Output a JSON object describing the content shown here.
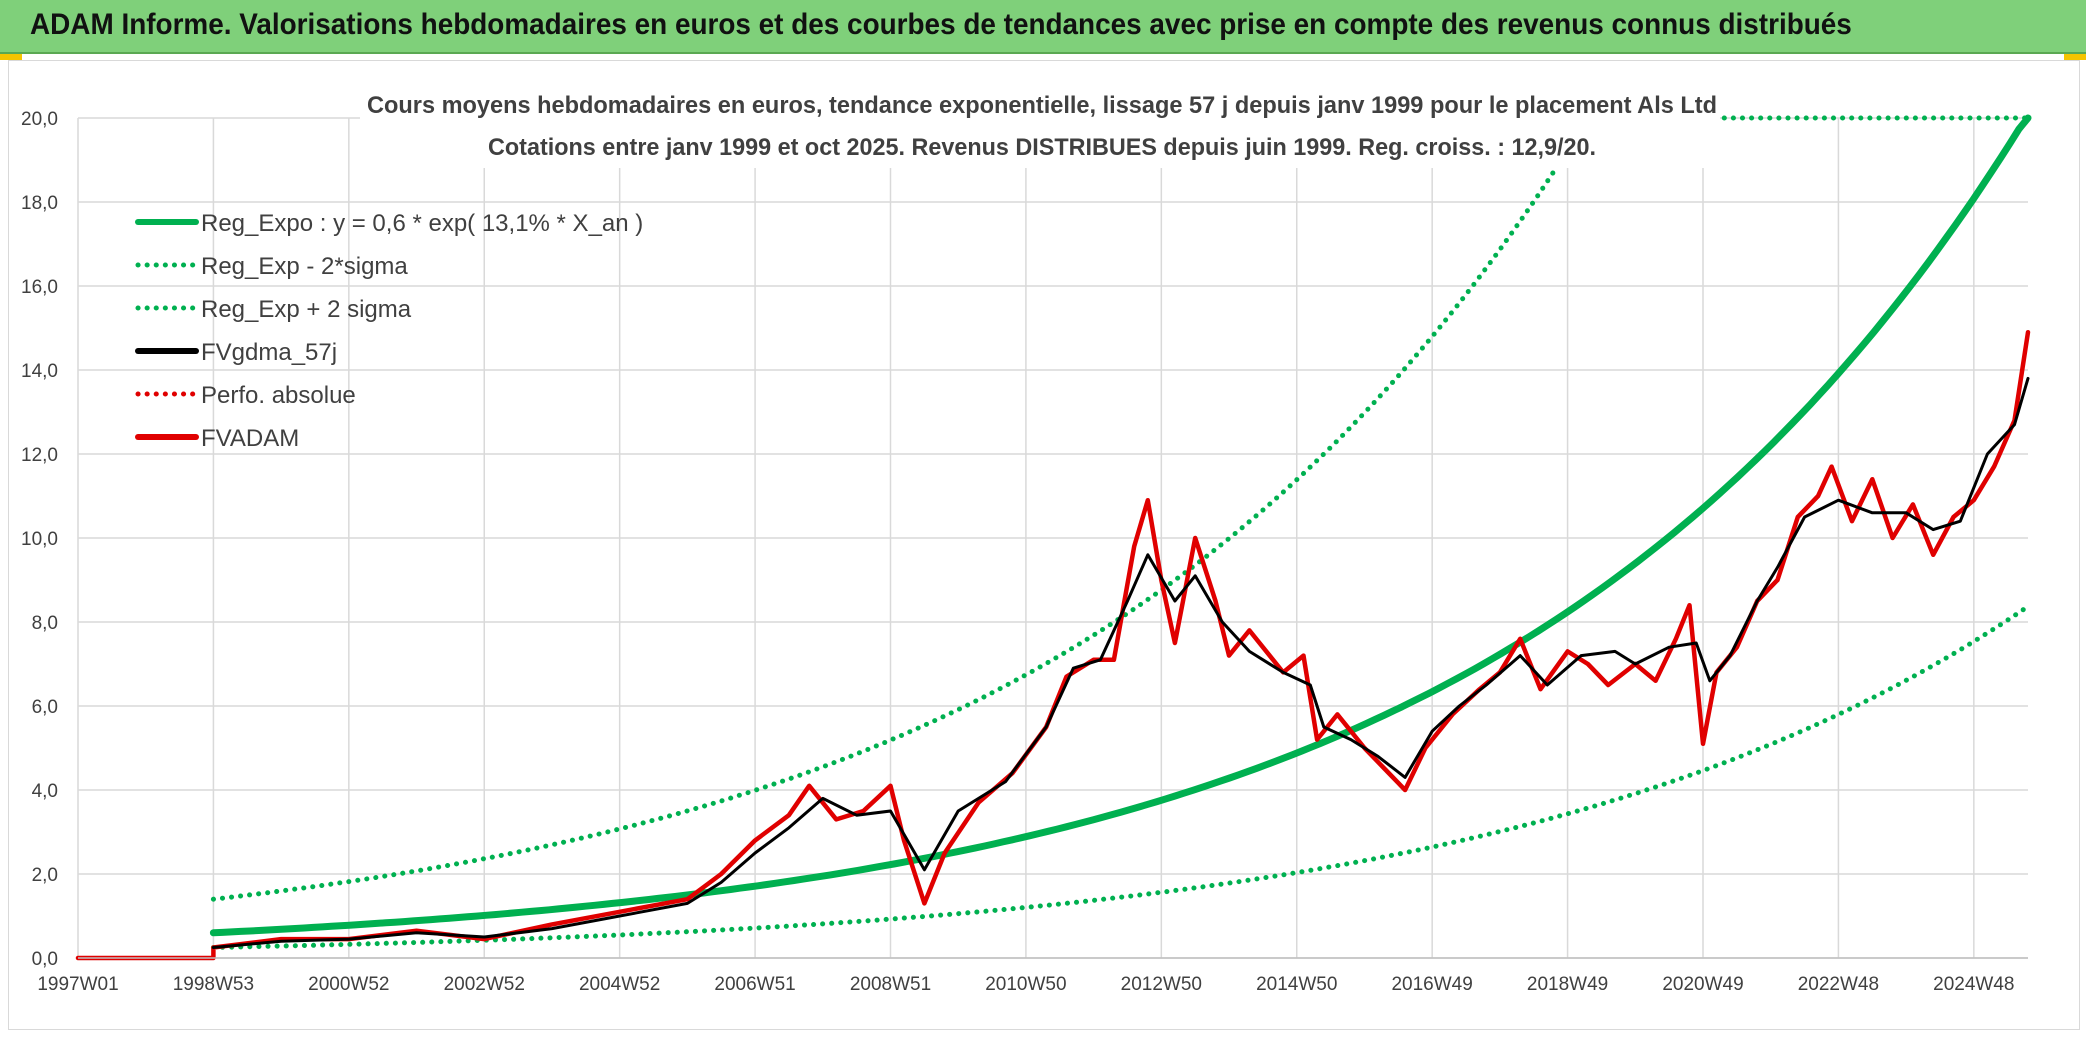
{
  "header": {
    "title": "ADAM Informe. Valorisations hebdomadaires en euros et des courbes de tendances avec prise en compte des revenus connus distribués"
  },
  "chart_data": {
    "type": "line",
    "title_line1": "Cours moyens hebdomadaires en euros, tendance exponentielle, lissage 57 j depuis janv 1999 pour le placement Als Ltd",
    "title_line2": "Cotations entre janv 1999 et oct 2025. Revenus DISTRIBUES depuis juin 1999. Reg. croiss. : 12,9/20.",
    "xlabel": "",
    "ylabel": "",
    "ylim": [
      0,
      20
    ],
    "xlim": [
      1997.0,
      2025.8
    ],
    "grid": true,
    "y_ticks": [
      "0,0",
      "2,0",
      "4,0",
      "6,0",
      "8,0",
      "10,0",
      "12,0",
      "14,0",
      "16,0",
      "18,0",
      "20,0"
    ],
    "x_ticks": [
      {
        "label": "1997W01",
        "x": 1997.0
      },
      {
        "label": "1998W53",
        "x": 1999.0
      },
      {
        "label": "2000W52",
        "x": 2001.0
      },
      {
        "label": "2002W52",
        "x": 2003.0
      },
      {
        "label": "2004W52",
        "x": 2005.0
      },
      {
        "label": "2006W51",
        "x": 2007.0
      },
      {
        "label": "2008W51",
        "x": 2009.0
      },
      {
        "label": "2010W50",
        "x": 2011.0
      },
      {
        "label": "2012W50",
        "x": 2013.0
      },
      {
        "label": "2014W50",
        "x": 2015.0
      },
      {
        "label": "2016W49",
        "x": 2017.0
      },
      {
        "label": "2018W49",
        "x": 2019.0
      },
      {
        "label": "2020W49",
        "x": 2021.0
      },
      {
        "label": "2022W48",
        "x": 2023.0
      },
      {
        "label": "2024W48",
        "x": 2025.0
      }
    ],
    "legend_position": "top-left",
    "series": [
      {
        "name": "Reg_Expo : y = 0,6 * exp( 13,1% *  X_an )",
        "color": "#00b050",
        "style": "solid",
        "type": "exp",
        "a": 0.6,
        "r": 0.131,
        "x0": 1999.0,
        "x1": 2025.8
      },
      {
        "name": "Reg_Exp - 2*sigma",
        "color": "#00b050",
        "style": "dotted",
        "type": "exp",
        "a": 0.25,
        "r": 0.131,
        "x0": 1999.0,
        "x1": 2025.8
      },
      {
        "name": "Reg_Exp + 2 sigma",
        "color": "#00b050",
        "style": "dotted",
        "type": "exp",
        "a": 1.4,
        "r": 0.131,
        "x0": 1999.0,
        "x1": 2025.8
      },
      {
        "name": "FVgdma_57j",
        "color": "#000000",
        "style": "solid",
        "type": "points",
        "points": [
          [
            1999.0,
            0.25
          ],
          [
            2000.0,
            0.4
          ],
          [
            2001.0,
            0.45
          ],
          [
            2002.0,
            0.6
          ],
          [
            2003.0,
            0.5
          ],
          [
            2004.0,
            0.7
          ],
          [
            2005.0,
            1.0
          ],
          [
            2006.0,
            1.3
          ],
          [
            2006.5,
            1.8
          ],
          [
            2007.0,
            2.5
          ],
          [
            2007.5,
            3.1
          ],
          [
            2008.0,
            3.8
          ],
          [
            2008.5,
            3.4
          ],
          [
            2009.0,
            3.5
          ],
          [
            2009.5,
            2.1
          ],
          [
            2010.0,
            3.5
          ],
          [
            2010.7,
            4.2
          ],
          [
            2011.3,
            5.5
          ],
          [
            2011.7,
            6.9
          ],
          [
            2012.1,
            7.1
          ],
          [
            2012.5,
            8.5
          ],
          [
            2012.8,
            9.6
          ],
          [
            2013.2,
            8.5
          ],
          [
            2013.5,
            9.1
          ],
          [
            2013.9,
            8.0
          ],
          [
            2014.3,
            7.3
          ],
          [
            2014.8,
            6.8
          ],
          [
            2015.2,
            6.5
          ],
          [
            2015.4,
            5.5
          ],
          [
            2015.8,
            5.2
          ],
          [
            2016.2,
            4.8
          ],
          [
            2016.6,
            4.3
          ],
          [
            2017.0,
            5.4
          ],
          [
            2017.4,
            6.0
          ],
          [
            2017.8,
            6.5
          ],
          [
            2018.3,
            7.2
          ],
          [
            2018.7,
            6.5
          ],
          [
            2019.2,
            7.2
          ],
          [
            2019.7,
            7.3
          ],
          [
            2020.0,
            7.0
          ],
          [
            2020.5,
            7.4
          ],
          [
            2020.9,
            7.5
          ],
          [
            2021.1,
            6.6
          ],
          [
            2021.4,
            7.2
          ],
          [
            2021.8,
            8.5
          ],
          [
            2022.1,
            9.3
          ],
          [
            2022.5,
            10.5
          ],
          [
            2023.0,
            10.9
          ],
          [
            2023.5,
            10.6
          ],
          [
            2024.0,
            10.6
          ],
          [
            2024.4,
            10.2
          ],
          [
            2024.8,
            10.4
          ],
          [
            2025.2,
            12.0
          ],
          [
            2025.6,
            12.7
          ],
          [
            2025.8,
            13.8
          ]
        ]
      },
      {
        "name": "Perfo. absolue",
        "color": "#e00000",
        "style": "dotted",
        "type": "none"
      },
      {
        "name": "FVADAM",
        "color": "#e00000",
        "style": "solid",
        "type": "points",
        "points": [
          [
            1997.0,
            0.0
          ],
          [
            1999.0,
            0.0
          ],
          [
            1999.0,
            0.25
          ],
          [
            2000.0,
            0.45
          ],
          [
            2001.0,
            0.45
          ],
          [
            2002.0,
            0.65
          ],
          [
            2003.0,
            0.45
          ],
          [
            2004.0,
            0.8
          ],
          [
            2005.0,
            1.1
          ],
          [
            2006.0,
            1.4
          ],
          [
            2006.5,
            2.0
          ],
          [
            2007.0,
            2.8
          ],
          [
            2007.5,
            3.4
          ],
          [
            2007.8,
            4.1
          ],
          [
            2008.2,
            3.3
          ],
          [
            2008.6,
            3.5
          ],
          [
            2009.0,
            4.1
          ],
          [
            2009.2,
            2.8
          ],
          [
            2009.5,
            1.3
          ],
          [
            2009.8,
            2.5
          ],
          [
            2010.3,
            3.7
          ],
          [
            2010.8,
            4.4
          ],
          [
            2011.3,
            5.5
          ],
          [
            2011.6,
            6.7
          ],
          [
            2012.0,
            7.1
          ],
          [
            2012.3,
            7.1
          ],
          [
            2012.6,
            9.8
          ],
          [
            2012.8,
            10.9
          ],
          [
            2013.0,
            9.0
          ],
          [
            2013.2,
            7.5
          ],
          [
            2013.5,
            10.0
          ],
          [
            2013.8,
            8.5
          ],
          [
            2014.0,
            7.2
          ],
          [
            2014.3,
            7.8
          ],
          [
            2014.8,
            6.8
          ],
          [
            2015.1,
            7.2
          ],
          [
            2015.3,
            5.2
          ],
          [
            2015.6,
            5.8
          ],
          [
            2016.0,
            5.0
          ],
          [
            2016.3,
            4.5
          ],
          [
            2016.6,
            4.0
          ],
          [
            2016.9,
            5.0
          ],
          [
            2017.3,
            5.8
          ],
          [
            2017.7,
            6.4
          ],
          [
            2018.0,
            6.8
          ],
          [
            2018.3,
            7.6
          ],
          [
            2018.6,
            6.4
          ],
          [
            2019.0,
            7.3
          ],
          [
            2019.3,
            7.0
          ],
          [
            2019.6,
            6.5
          ],
          [
            2020.0,
            7.0
          ],
          [
            2020.3,
            6.6
          ],
          [
            2020.6,
            7.6
          ],
          [
            2020.8,
            8.4
          ],
          [
            2021.0,
            5.1
          ],
          [
            2021.2,
            6.8
          ],
          [
            2021.5,
            7.4
          ],
          [
            2021.8,
            8.5
          ],
          [
            2022.1,
            9.0
          ],
          [
            2022.4,
            10.5
          ],
          [
            2022.7,
            11.0
          ],
          [
            2022.9,
            11.7
          ],
          [
            2023.2,
            10.4
          ],
          [
            2023.5,
            11.4
          ],
          [
            2023.8,
            10.0
          ],
          [
            2024.1,
            10.8
          ],
          [
            2024.4,
            9.6
          ],
          [
            2024.7,
            10.5
          ],
          [
            2025.0,
            10.9
          ],
          [
            2025.3,
            11.7
          ],
          [
            2025.6,
            12.8
          ],
          [
            2025.8,
            14.9
          ]
        ]
      }
    ]
  }
}
